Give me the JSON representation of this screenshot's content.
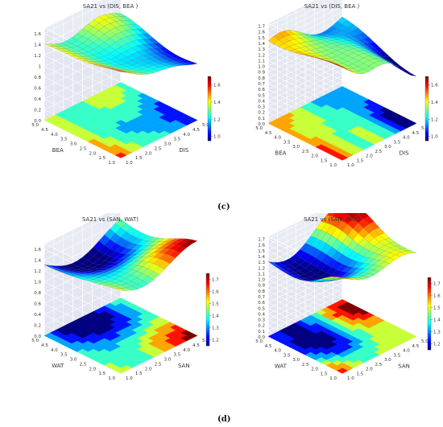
{
  "figure": {
    "label_c": "(c)",
    "label_d": "(d)"
  },
  "chart_data": [
    {
      "type": "surface",
      "title": "SA21 vs (DIS, BEA )",
      "xlabel": "DIS",
      "ylabel": "BEA",
      "xticks": [
        "1.0",
        "1.5",
        "2.0",
        "2.5",
        "3.0",
        "3.5",
        "4.0",
        "4.5",
        "5.0"
      ],
      "yticks": [
        "1.0",
        "1.5",
        "2.0",
        "2.5",
        "3.0",
        "3.5",
        "4.0",
        "4.5",
        "5.0"
      ],
      "zticks": [
        "0.0",
        "0.2",
        "0.4",
        "0.6",
        "0.8",
        "1",
        "1.2",
        "1.4",
        "1.6"
      ],
      "zlim": [
        0,
        1.7
      ],
      "colorbar": {
        "ticks": [
          "1.0",
          "1.2",
          "1.4",
          "1.6"
        ],
        "range": [
          0.95,
          1.7
        ]
      },
      "colormap": "jet",
      "grid": true,
      "surface_range": [
        1.0,
        1.6
      ]
    },
    {
      "type": "surface",
      "title": "SA21 vs (DIS, BEA )",
      "xlabel": "DIS",
      "ylabel": "BEA",
      "xticks": [
        "1.0",
        "1.5",
        "2.0",
        "2.5",
        "3.0",
        "3.5",
        "4.0",
        "4.5",
        "5.0"
      ],
      "yticks": [
        "1.0",
        "1.5",
        "2.0",
        "2.5",
        "3.0",
        "3.5",
        "4.0",
        "4.5",
        "5.0"
      ],
      "zticks": [
        "0.0",
        "0.1",
        "0.2",
        "0.3",
        "0.4",
        "0.5",
        "0.6",
        "0.7",
        "0.8",
        "0.9",
        "1.0",
        "1.1",
        "1.2",
        "1.3",
        "1.4",
        "1.5",
        "1.6",
        "1.7"
      ],
      "zlim": [
        0,
        1.75
      ],
      "colorbar": {
        "ticks": [
          "1.0",
          "1.2",
          "1.4",
          "1.6"
        ],
        "range": [
          0.95,
          1.7
        ]
      },
      "colormap": "jet",
      "grid": true,
      "surface_range": [
        0.95,
        1.7
      ]
    },
    {
      "type": "surface",
      "title": "SA21 vs (SAN, WAT)",
      "xlabel": "SAN",
      "ylabel": "WAT",
      "xticks": [
        "1.0",
        "1.5",
        "2.0",
        "2.5",
        "3.0",
        "3.5",
        "4.0",
        "4.5",
        "5.0"
      ],
      "yticks": [
        "1.0",
        "1.5",
        "2.0",
        "2.5",
        "3.0",
        "3.5",
        "4.0",
        "4.5",
        "5.0"
      ],
      "zticks": [
        "0.0",
        "0.2",
        "0.4",
        "0.6",
        "0.8",
        "1.0",
        "1.2",
        "1.4",
        "1.6"
      ],
      "zlim": [
        0,
        1.7
      ],
      "colorbar": {
        "ticks": [
          "1.2",
          "1.3",
          "1.4",
          "1.5",
          "1.6",
          "1.7"
        ],
        "range": [
          1.15,
          1.75
        ]
      },
      "colormap": "jet",
      "grid": true,
      "surface_range": [
        1.15,
        1.7
      ]
    },
    {
      "type": "surface",
      "title": "SA21 vs (SAN, WAT)",
      "xlabel": "SAN",
      "ylabel": "WAT",
      "xticks": [
        "1.0",
        "1.5",
        "2.0",
        "2.5",
        "3.0",
        "3.5",
        "4.0",
        "4.5",
        "5.0"
      ],
      "yticks": [
        "1.0",
        "1.5",
        "2.0",
        "2.5",
        "3.0",
        "3.5",
        "4.0",
        "4.5",
        "5.0"
      ],
      "zticks": [
        "0.0",
        "0.1",
        "0.2",
        "0.3",
        "0.4",
        "0.5",
        "0.6",
        "0.7",
        "0.8",
        "0.9",
        "1.0",
        "1.1",
        "1.2",
        "1.3",
        "1.4",
        "1.5",
        "1.6",
        "1.7"
      ],
      "zlim": [
        0,
        1.75
      ],
      "colorbar": {
        "ticks": [
          "1.2",
          "1.3",
          "1.4",
          "1.5",
          "1.6",
          "1.7"
        ],
        "range": [
          1.15,
          1.75
        ]
      },
      "colormap": "jet",
      "grid": true,
      "surface_range": [
        1.15,
        1.7
      ]
    }
  ]
}
